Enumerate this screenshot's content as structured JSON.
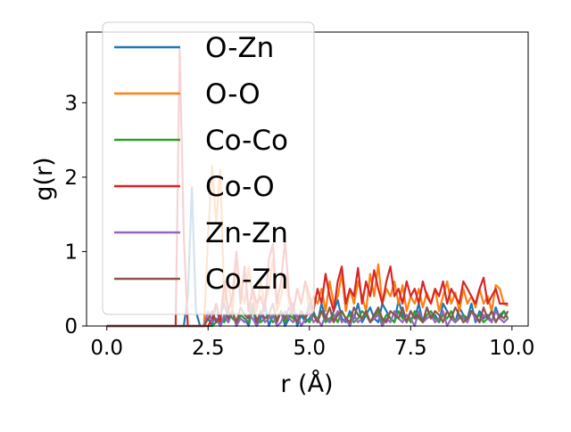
{
  "chart_data": {
    "type": "line",
    "xlabel": "r (Å)",
    "ylabel": "g(r)",
    "xlim": [
      -0.5,
      10.4
    ],
    "ylim": [
      0,
      3.95
    ],
    "xticks": [
      0.0,
      2.5,
      5.0,
      7.5,
      10.0
    ],
    "xtick_labels": [
      "0.0",
      "2.5",
      "5.0",
      "7.5",
      "10.0"
    ],
    "yticks": [
      0,
      1,
      2,
      3
    ],
    "ytick_labels": [
      "0",
      "1",
      "2",
      "3"
    ],
    "grid": false,
    "legend_position": "upper-left",
    "x": [
      0.0,
      0.1,
      0.2,
      0.3,
      0.4,
      0.5,
      0.6,
      0.7,
      0.8,
      0.9,
      1.0,
      1.1,
      1.2,
      1.3,
      1.4,
      1.5,
      1.6,
      1.7,
      1.8,
      1.9,
      2.0,
      2.1,
      2.2,
      2.3,
      2.4,
      2.5,
      2.6,
      2.7,
      2.8,
      2.9,
      3.0,
      3.1,
      3.2,
      3.3,
      3.4,
      3.5,
      3.6,
      3.7,
      3.8,
      3.9,
      4.0,
      4.1,
      4.2,
      4.3,
      4.4,
      4.5,
      4.6,
      4.7,
      4.8,
      4.9,
      5.0,
      5.1,
      5.2,
      5.3,
      5.4,
      5.5,
      5.6,
      5.7,
      5.8,
      5.9,
      6.0,
      6.1,
      6.2,
      6.3,
      6.4,
      6.5,
      6.6,
      6.7,
      6.8,
      6.9,
      7.0,
      7.1,
      7.2,
      7.3,
      7.4,
      7.5,
      7.6,
      7.7,
      7.8,
      7.9,
      8.0,
      8.1,
      8.2,
      8.3,
      8.4,
      8.5,
      8.6,
      8.7,
      8.8,
      8.9,
      9.0,
      9.1,
      9.2,
      9.3,
      9.4,
      9.5,
      9.6,
      9.7,
      9.8,
      9.9
    ],
    "series": [
      {
        "name": "O-Zn",
        "color": "#1f77b4",
        "values": [
          0,
          0,
          0,
          0,
          0,
          0,
          0,
          0,
          0,
          0,
          0,
          0,
          0,
          0,
          0,
          0,
          0,
          0,
          0,
          0,
          0.4,
          1.86,
          0.2,
          0,
          0,
          0.1,
          0,
          0.3,
          0,
          0.12,
          0.05,
          0.2,
          0,
          0.15,
          0.1,
          0,
          0.25,
          0,
          0.1,
          0.3,
          0,
          0.15,
          0.05,
          0.2,
          0,
          0.1,
          0.3,
          0,
          0.15,
          0.05,
          0.1,
          0.2,
          0.05,
          0.3,
          0.1,
          0.05,
          0.2,
          0.35,
          0.1,
          0.05,
          0.2,
          0.1,
          0.3,
          0.05,
          0.15,
          0.25,
          0.1,
          0.05,
          0.3,
          0.2,
          0.1,
          0.05,
          0.35,
          0.15,
          0.05,
          0.2,
          0.1,
          0.3,
          0.05,
          0.25,
          0.1,
          0.15,
          0.05,
          0.3,
          0.2,
          0.1,
          0.05,
          0.25,
          0.15,
          0.1,
          0.3,
          0.05,
          0.2,
          0.1,
          0.15,
          0.05,
          0.25,
          0.1,
          0.2,
          0.1
        ]
      },
      {
        "name": "O-O",
        "color": "#ff7f0e",
        "values": [
          0,
          0,
          0,
          0,
          0,
          0,
          0,
          0,
          0,
          0,
          0,
          0,
          0,
          0,
          0,
          0,
          0,
          0,
          0,
          0,
          0,
          0,
          0,
          0,
          0,
          1.2,
          2.15,
          1.4,
          2.1,
          0.3,
          0.6,
          0.2,
          0.9,
          0.5,
          0.3,
          0.8,
          0.4,
          0.2,
          0.6,
          0.3,
          0.5,
          0.9,
          0.2,
          0.4,
          0.7,
          0.3,
          0.2,
          0.5,
          0.3,
          0.6,
          0.2,
          0.4,
          0.3,
          0.5,
          0.2,
          0.6,
          0.3,
          0.4,
          0.7,
          0.2,
          0.5,
          0.3,
          0.6,
          0.4,
          0.2,
          0.7,
          0.4,
          0.83,
          0.3,
          0.5,
          0.4,
          0.6,
          0.3,
          0.55,
          0.2,
          0.4,
          0.3,
          0.5,
          0.25,
          0.45,
          0.3,
          0.5,
          0.2,
          0.4,
          0.6,
          0.3,
          0.45,
          0.2,
          0.5,
          0.3,
          0.4,
          0.25,
          0.5,
          0.3,
          0.4,
          0.2,
          0.55,
          0.5,
          0.3,
          0.27
        ]
      },
      {
        "name": "Co-Co",
        "color": "#2ca02c",
        "values": [
          0,
          0,
          0,
          0,
          0,
          0,
          0,
          0,
          0,
          0,
          0,
          0,
          0,
          0,
          0,
          0,
          0,
          0,
          0,
          0,
          0,
          0,
          0,
          0,
          0,
          0,
          0,
          0.05,
          0.1,
          0.05,
          0.2,
          0.1,
          0.05,
          0.15,
          0.1,
          0.05,
          0.2,
          0.1,
          0.05,
          0.1,
          0.15,
          0.05,
          0.1,
          0.2,
          0.05,
          0.15,
          0.1,
          0.05,
          0.2,
          0.1,
          0.05,
          0.15,
          0.1,
          0.2,
          0.05,
          0.1,
          0.15,
          0.05,
          0.2,
          0.1,
          0.15,
          0.05,
          0.1,
          0.2,
          0.15,
          0.05,
          0.1,
          0.2,
          0.05,
          0.15,
          0.1,
          0.05,
          0.2,
          0.1,
          0.15,
          0.05,
          0.2,
          0.1,
          0.05,
          0.15,
          0.2,
          0.1,
          0.05,
          0.15,
          0.1,
          0.2,
          0.05,
          0.1,
          0.15,
          0.05,
          0.2,
          0.1,
          0.15,
          0.05,
          0.1,
          0.2,
          0.05,
          0.15,
          0.2,
          0.1
        ]
      },
      {
        "name": "Co-O",
        "color": "#d62728",
        "values": [
          0,
          0,
          0,
          0,
          0,
          0,
          0,
          0,
          0,
          0,
          0,
          0,
          0,
          0,
          0,
          0,
          0,
          0,
          3.72,
          1.2,
          0,
          0,
          0,
          0,
          0,
          0,
          0.1,
          0.3,
          0.05,
          0.6,
          0.2,
          0.4,
          1.0,
          0.3,
          0.8,
          0.2,
          0.5,
          0.3,
          0.4,
          0.2,
          0.9,
          1.1,
          0.3,
          0.6,
          1.15,
          0.4,
          0.2,
          0.5,
          0.3,
          0.6,
          0.4,
          0.2,
          0.5,
          0.3,
          0.7,
          0.4,
          0.2,
          0.6,
          0.8,
          0.3,
          0.5,
          0.4,
          0.78,
          0.3,
          0.6,
          0.4,
          0.75,
          0.5,
          0.3,
          0.6,
          0.8,
          0.4,
          0.5,
          0.3,
          0.6,
          0.4,
          0.5,
          0.3,
          0.6,
          0.4,
          0.3,
          0.5,
          0.4,
          0.6,
          0.3,
          0.5,
          0.4,
          0.3,
          0.6,
          0.5,
          0.4,
          0.3,
          0.5,
          0.65,
          0.3,
          0.4,
          0.5,
          0.3,
          0.3,
          0.3
        ]
      },
      {
        "name": "Zn-Zn",
        "color": "#9467bd",
        "values": [
          0,
          0,
          0,
          0,
          0,
          0,
          0,
          0,
          0,
          0,
          0,
          0,
          0,
          0,
          0,
          0,
          0,
          0,
          0,
          0,
          0,
          0,
          0,
          0,
          0,
          0.2,
          0.05,
          0.1,
          0,
          0.15,
          0.05,
          0.2,
          0,
          0.1,
          0.05,
          0.15,
          0.1,
          0,
          0.2,
          0.05,
          0.1,
          0.15,
          0,
          0.05,
          0.2,
          0.1,
          0.05,
          0.15,
          0,
          0.1,
          0.2,
          0.05,
          0.1,
          0,
          0.15,
          0.05,
          0.1,
          0.2,
          0.05,
          0.1,
          0,
          0.15,
          0.05,
          0.1,
          0.2,
          0.05,
          0.1,
          0.15,
          0,
          0.1,
          0.05,
          0.2,
          0.1,
          0.05,
          0.15,
          0.1,
          0,
          0.2,
          0.05,
          0.1,
          0.15,
          0.05,
          0.1,
          0.2,
          0,
          0.1,
          0.05,
          0.15,
          0.1,
          0.05,
          0.2,
          0.1,
          0.05,
          0.15,
          0.1,
          0.05,
          0.2,
          0.1,
          0.05,
          0.1
        ]
      },
      {
        "name": "Co-Zn",
        "color": "#8c564b",
        "values": [
          0,
          0,
          0,
          0,
          0,
          0,
          0,
          0,
          0,
          0,
          0,
          0,
          0,
          0,
          0,
          0,
          0,
          0,
          0,
          0,
          0,
          0,
          0,
          0,
          0,
          0.1,
          0.2,
          0.05,
          0.15,
          0.3,
          0.1,
          0.2,
          0.05,
          0.25,
          0.15,
          0.1,
          0.3,
          0.05,
          0.2,
          0.1,
          0.15,
          0.3,
          0.05,
          0.2,
          0.1,
          0.25,
          0.15,
          0.05,
          0.2,
          0.1,
          0.3,
          0.15,
          0.05,
          0.2,
          0.1,
          0.25,
          0.05,
          0.15,
          0.2,
          0.1,
          0.05,
          0.25,
          0.15,
          0.1,
          0.2,
          0.05,
          0.15,
          0.25,
          0.1,
          0.05,
          0.2,
          0.15,
          0.1,
          0.25,
          0.05,
          0.2,
          0.1,
          0.15,
          0.05,
          0.25,
          0.1,
          0.2,
          0.15,
          0.05,
          0.2,
          0.1,
          0.25,
          0.15,
          0.05,
          0.1,
          0.2,
          0.15,
          0.05,
          0.25,
          0.1,
          0.2,
          0.05,
          0.15,
          0.1,
          0.2
        ]
      }
    ]
  }
}
